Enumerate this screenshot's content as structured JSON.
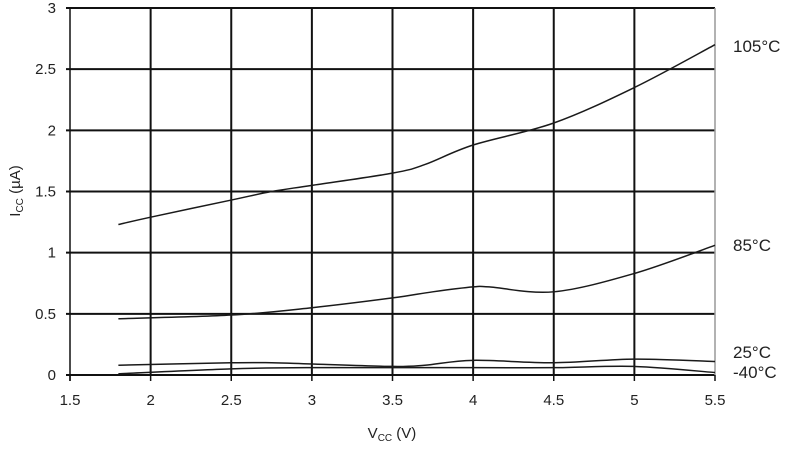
{
  "chart_data": {
    "type": "line",
    "title": "",
    "xlabel": {
      "main": "V",
      "sub": "CC",
      "unit": " (V)"
    },
    "ylabel": {
      "main": "I",
      "sub": "CC",
      "unit": " (µA)"
    },
    "xlim": [
      1.5,
      5.5
    ],
    "ylim": [
      0,
      3
    ],
    "xticks": [
      "1.5",
      "2",
      "2.5",
      "3",
      "3.5",
      "4",
      "4.5",
      "5",
      "5.5"
    ],
    "yticks": [
      "0",
      "0.5",
      "1",
      "1.5",
      "2",
      "2.5",
      "3"
    ],
    "grid": true,
    "legend": "labels at right end of each line",
    "line_color": "#1a1a1a",
    "series": [
      {
        "name": "105°C",
        "x": [
          1.8,
          2,
          2.5,
          2.75,
          3,
          3.5,
          3.7,
          4,
          4.5,
          5,
          5.5
        ],
        "y": [
          1.23,
          1.29,
          1.43,
          1.5,
          1.55,
          1.65,
          1.72,
          1.88,
          2.06,
          2.35,
          2.7
        ]
      },
      {
        "name": "85°C",
        "x": [
          1.8,
          2.5,
          3,
          3.5,
          3.75,
          4,
          4.1,
          4.5,
          5,
          5.5
        ],
        "y": [
          0.46,
          0.49,
          0.55,
          0.63,
          0.68,
          0.72,
          0.72,
          0.68,
          0.83,
          1.06
        ]
      },
      {
        "name": "25°C",
        "x": [
          1.8,
          2.5,
          2.75,
          3,
          3.5,
          3.7,
          4,
          4.5,
          5,
          5.5
        ],
        "y": [
          0.08,
          0.1,
          0.1,
          0.09,
          0.07,
          0.08,
          0.12,
          0.1,
          0.13,
          0.11
        ]
      },
      {
        "name": "-40°C",
        "x": [
          1.8,
          2.5,
          3,
          4,
          4.5,
          5,
          5.5
        ],
        "y": [
          0.01,
          0.05,
          0.06,
          0.06,
          0.06,
          0.07,
          0.02
        ]
      }
    ]
  }
}
